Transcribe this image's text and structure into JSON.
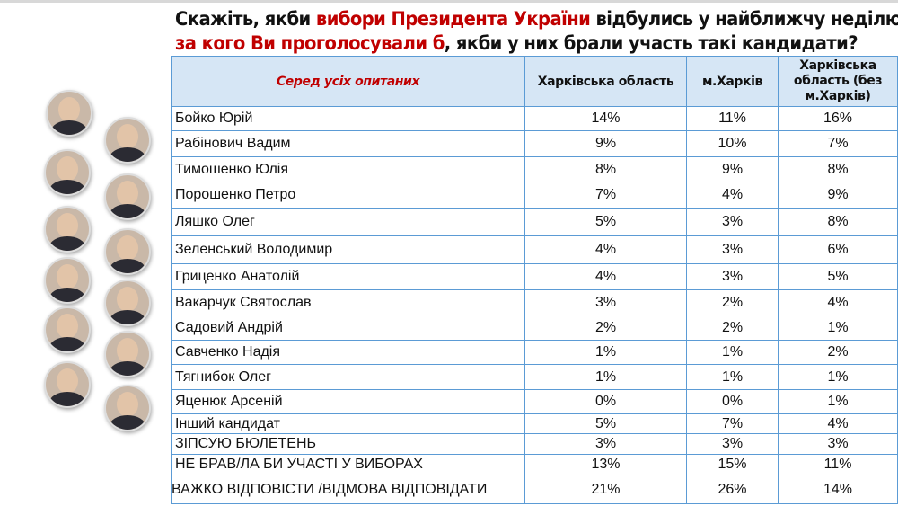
{
  "title": {
    "line1": [
      {
        "t": "Скажіть, якби ",
        "red": false
      },
      {
        "t": "вибори Президента України",
        "red": true
      },
      {
        "t": " відбулись у найближчу неділю,",
        "red": false
      }
    ],
    "line2": [
      {
        "t": "за кого Ви проголосували б",
        "red": true
      },
      {
        "t": ", якби у них брали участь такі кандидати?",
        "red": false
      }
    ]
  },
  "table": {
    "headers": [
      "Серед усіх опитаних",
      "Харківська область",
      "м.Харків",
      "Харківська область (без м.Харків)"
    ],
    "rows": [
      {
        "label": "Бойко Юрій",
        "values": [
          "14%",
          "11%",
          "16%"
        ]
      },
      {
        "label": "Рабінович Вадим",
        "values": [
          "9%",
          "10%",
          "7%"
        ]
      },
      {
        "label": "Тимошенко Юлія",
        "values": [
          "8%",
          "9%",
          "8%"
        ]
      },
      {
        "label": "Порошенко Петро",
        "values": [
          "7%",
          "4%",
          "9%"
        ]
      },
      {
        "label": "Ляшко Олег",
        "values": [
          "5%",
          "3%",
          "8%"
        ]
      },
      {
        "label": "Зеленський Володимир",
        "values": [
          "4%",
          "3%",
          "6%"
        ]
      },
      {
        "label": "Гриценко Анатолій",
        "values": [
          "4%",
          "3%",
          "5%"
        ]
      },
      {
        "label": "Вакарчук Святослав",
        "values": [
          "3%",
          "2%",
          "4%"
        ]
      },
      {
        "label": "Садовий Андрій",
        "values": [
          "2%",
          "2%",
          "1%"
        ]
      },
      {
        "label": "Савченко Надія",
        "values": [
          "1%",
          "1%",
          "2%"
        ]
      },
      {
        "label": "Тягнибок Олег",
        "values": [
          "1%",
          "1%",
          "1%"
        ]
      },
      {
        "label": "Яценюк Арсеній",
        "values": [
          "0%",
          "0%",
          "1%"
        ]
      },
      {
        "label": "Інший кандидат",
        "values": [
          "5%",
          "7%",
          "4%"
        ]
      },
      {
        "label": "ЗІПСУЮ БЮЛЕТЕНЬ",
        "values": [
          "3%",
          "3%",
          "3%"
        ]
      },
      {
        "label": "НЕ БРАВ/ЛА БИ УЧАСТІ У ВИБОРАХ",
        "values": [
          "13%",
          "15%",
          "11%"
        ]
      },
      {
        "label": "ВАЖКО ВІДПОВІСТИ /ВІДМОВА ВІДПОВІДАТИ",
        "values": [
          "21%",
          "26%",
          "14%"
        ]
      }
    ]
  },
  "colors": {
    "accent_red": "#c00000",
    "header_bg": "#d6e6f5",
    "border": "#5b9bd5"
  }
}
